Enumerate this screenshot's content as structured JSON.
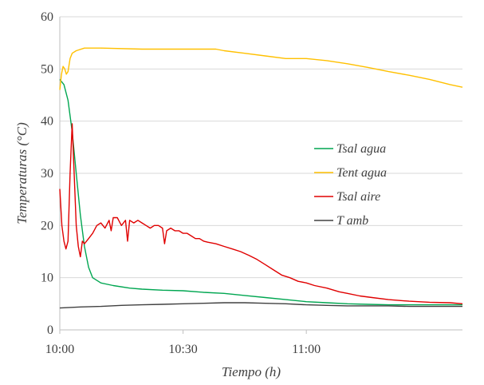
{
  "chart_data": {
    "type": "line",
    "title": "",
    "xlabel": "Tiempo (h)",
    "ylabel": "Temperaturas (°C)",
    "xlim": [
      0,
      98
    ],
    "ylim": [
      0,
      60
    ],
    "yticks": [
      0,
      10,
      20,
      30,
      40,
      50,
      60
    ],
    "xticks": [
      {
        "value": 0,
        "label": "10:00"
      },
      {
        "value": 30,
        "label": "10:30"
      },
      {
        "value": 60,
        "label": "11:00"
      }
    ],
    "grid": true,
    "legend_position": "center-right",
    "series": [
      {
        "name": "Tsal agua",
        "color": "#00a651",
        "points": [
          [
            0,
            48
          ],
          [
            0.5,
            47.5
          ],
          [
            1,
            47
          ],
          [
            2,
            44
          ],
          [
            3,
            38
          ],
          [
            4,
            30
          ],
          [
            5,
            22
          ],
          [
            6,
            16
          ],
          [
            7,
            12
          ],
          [
            8,
            10
          ],
          [
            10,
            9
          ],
          [
            13,
            8.5
          ],
          [
            17,
            8
          ],
          [
            20,
            7.8
          ],
          [
            25,
            7.6
          ],
          [
            30,
            7.5
          ],
          [
            35,
            7.2
          ],
          [
            40,
            7
          ],
          [
            45,
            6.6
          ],
          [
            50,
            6.2
          ],
          [
            55,
            5.8
          ],
          [
            60,
            5.4
          ],
          [
            65,
            5.2
          ],
          [
            70,
            5
          ],
          [
            75,
            4.9
          ],
          [
            80,
            4.8
          ],
          [
            85,
            4.8
          ],
          [
            90,
            4.8
          ],
          [
            98,
            4.8
          ]
        ]
      },
      {
        "name": "Tent agua",
        "color": "#ffc000",
        "points": [
          [
            0,
            46
          ],
          [
            0.4,
            49
          ],
          [
            0.8,
            50.5
          ],
          [
            1.2,
            50
          ],
          [
            1.6,
            49
          ],
          [
            2,
            49.5
          ],
          [
            2.5,
            52
          ],
          [
            3,
            53
          ],
          [
            4,
            53.5
          ],
          [
            6,
            54
          ],
          [
            10,
            54
          ],
          [
            20,
            53.8
          ],
          [
            30,
            53.8
          ],
          [
            38,
            53.8
          ],
          [
            40,
            53.5
          ],
          [
            45,
            53
          ],
          [
            50,
            52.5
          ],
          [
            55,
            52
          ],
          [
            60,
            52
          ],
          [
            65,
            51.6
          ],
          [
            70,
            51
          ],
          [
            75,
            50.3
          ],
          [
            80,
            49.5
          ],
          [
            85,
            48.8
          ],
          [
            90,
            48
          ],
          [
            95,
            47
          ],
          [
            98,
            46.5
          ]
        ]
      },
      {
        "name": "Tsal aire",
        "color": "#e00000",
        "points": [
          [
            0,
            27
          ],
          [
            0.5,
            20
          ],
          [
            1,
            17
          ],
          [
            1.5,
            15.5
          ],
          [
            2,
            17
          ],
          [
            2.5,
            30
          ],
          [
            3,
            39.5
          ],
          [
            3.5,
            30
          ],
          [
            4,
            20
          ],
          [
            4.5,
            16
          ],
          [
            5,
            14
          ],
          [
            5.5,
            17
          ],
          [
            6,
            16.5
          ],
          [
            7,
            17.5
          ],
          [
            8,
            18.5
          ],
          [
            9,
            20
          ],
          [
            10,
            20.5
          ],
          [
            11,
            19.5
          ],
          [
            12,
            21
          ],
          [
            12.5,
            19
          ],
          [
            13,
            21.5
          ],
          [
            14,
            21.5
          ],
          [
            15,
            20
          ],
          [
            16,
            21
          ],
          [
            16.5,
            17
          ],
          [
            17,
            21
          ],
          [
            18,
            20.5
          ],
          [
            19,
            21
          ],
          [
            20,
            20.5
          ],
          [
            21,
            20
          ],
          [
            22,
            19.5
          ],
          [
            23,
            20
          ],
          [
            24,
            20
          ],
          [
            25,
            19.5
          ],
          [
            25.5,
            16.5
          ],
          [
            26,
            19
          ],
          [
            27,
            19.5
          ],
          [
            28,
            19
          ],
          [
            29,
            19
          ],
          [
            30,
            18.5
          ],
          [
            31,
            18.5
          ],
          [
            32,
            18
          ],
          [
            33,
            17.5
          ],
          [
            34,
            17.5
          ],
          [
            35,
            17
          ],
          [
            36,
            16.8
          ],
          [
            38,
            16.5
          ],
          [
            40,
            16
          ],
          [
            42,
            15.5
          ],
          [
            44,
            15
          ],
          [
            46,
            14.3
          ],
          [
            48,
            13.5
          ],
          [
            50,
            12.5
          ],
          [
            52,
            11.5
          ],
          [
            54,
            10.5
          ],
          [
            56,
            10
          ],
          [
            58,
            9.3
          ],
          [
            60,
            9
          ],
          [
            62,
            8.5
          ],
          [
            65,
            8
          ],
          [
            68,
            7.3
          ],
          [
            70,
            7
          ],
          [
            73,
            6.5
          ],
          [
            76,
            6.2
          ],
          [
            80,
            5.8
          ],
          [
            85,
            5.5
          ],
          [
            90,
            5.3
          ],
          [
            95,
            5.2
          ],
          [
            98,
            5
          ]
        ]
      },
      {
        "name": "T amb",
        "color": "#404040",
        "points": [
          [
            0,
            4.2
          ],
          [
            5,
            4.4
          ],
          [
            10,
            4.5
          ],
          [
            15,
            4.7
          ],
          [
            20,
            4.8
          ],
          [
            25,
            4.9
          ],
          [
            30,
            5
          ],
          [
            35,
            5.1
          ],
          [
            40,
            5.2
          ],
          [
            45,
            5.2
          ],
          [
            50,
            5.1
          ],
          [
            55,
            5
          ],
          [
            60,
            4.8
          ],
          [
            65,
            4.7
          ],
          [
            70,
            4.6
          ],
          [
            75,
            4.6
          ],
          [
            80,
            4.6
          ],
          [
            85,
            4.5
          ],
          [
            90,
            4.5
          ],
          [
            98,
            4.5
          ]
        ]
      }
    ]
  }
}
